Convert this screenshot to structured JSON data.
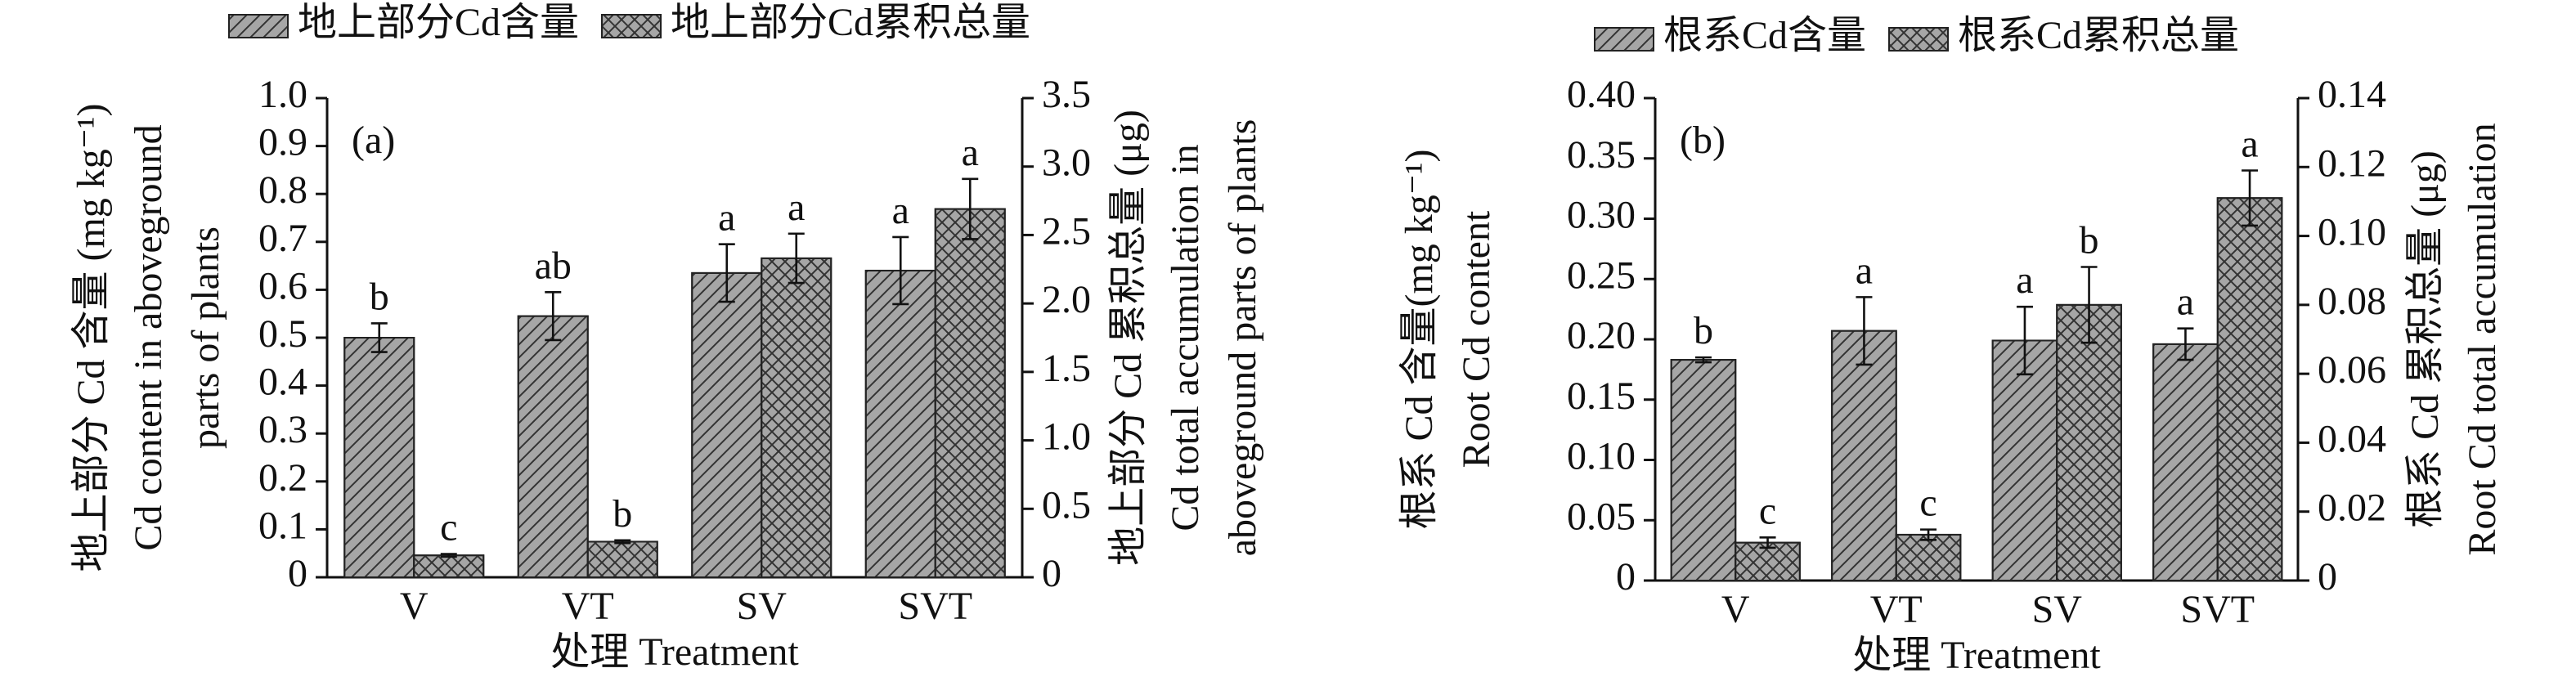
{
  "chart_data": [
    {
      "type": "bar",
      "panel": "(a)",
      "categories": [
        "V",
        "VT",
        "SV",
        "SVT"
      ],
      "xlabel": "处理 Treatment",
      "ylabel": [
        "地上部分 Cd 含量 (mg kg⁻¹)",
        "Cd content in aboveground",
        "parts of plants"
      ],
      "y2label": [
        "地上部分 Cd 累积总量 (μg)",
        "Cd total accumulation in",
        "aboveground parts of plants"
      ],
      "ylim": [
        0,
        1
      ],
      "yticks": [
        0,
        0.1,
        0.2,
        0.3,
        0.4,
        0.5,
        0.6,
        0.7,
        0.8,
        0.9,
        {
          "value": 1,
          "label": "1.0"
        }
      ],
      "y2lim": [
        0,
        3.5
      ],
      "y2ticks": [
        0,
        0.5,
        {
          "value": 1,
          "label": "1.0"
        },
        1.5,
        {
          "value": 2,
          "label": "2.0"
        },
        2.5,
        {
          "value": 3,
          "label": "3.0"
        },
        3.5
      ],
      "series": [
        {
          "name": "地上部分Cd含量",
          "color": "#a6a6a6",
          "hatch": "diagonal",
          "axis": "y",
          "values": [
            0.5,
            0.545,
            0.635,
            0.64
          ],
          "errors": [
            0.03,
            0.05,
            0.06,
            0.07
          ],
          "significance": [
            "b",
            "ab",
            "a",
            "a"
          ]
        },
        {
          "name": "地上部分Cd累积总量",
          "color": "#a6a6a6",
          "hatch": "crosshatch",
          "axis": "y2",
          "values": [
            0.16,
            0.26,
            2.33,
            2.69
          ],
          "errors": [
            0.01,
            0.01,
            0.18,
            0.22
          ],
          "significance": [
            "c",
            "b",
            "a",
            "a"
          ]
        }
      ]
    },
    {
      "type": "bar",
      "panel": "(b)",
      "categories": [
        "V",
        "VT",
        "SV",
        "SVT"
      ],
      "xlabel": "处理 Treatment",
      "ylabel": [
        "根系 Cd 含量(mg kg⁻¹)",
        "Root Cd content"
      ],
      "y2label": [
        "根系 Cd 累积总量 (μg)",
        "Root Cd total accumulation"
      ],
      "ylim": [
        0,
        0.4
      ],
      "yticks": [
        0,
        0.05,
        {
          "value": 0.1,
          "label": "0.10"
        },
        0.15,
        {
          "value": 0.2,
          "label": "0.20"
        },
        0.25,
        {
          "value": 0.3,
          "label": "0.30"
        },
        0.35,
        {
          "value": 0.4,
          "label": "0.40"
        }
      ],
      "y2lim": [
        0,
        0.14
      ],
      "y2ticks": [
        0,
        0.02,
        0.04,
        0.06,
        0.08,
        {
          "value": 0.1,
          "label": "0.10"
        },
        0.12,
        0.14
      ],
      "series": [
        {
          "name": "根系Cd含量",
          "color": "#a6a6a6",
          "hatch": "diagonal",
          "axis": "y",
          "values": [
            0.183,
            0.207,
            0.199,
            0.196
          ],
          "errors": [
            0.002,
            0.028,
            0.028,
            0.013
          ],
          "significance": [
            "b",
            "a",
            "a",
            "a"
          ]
        },
        {
          "name": "根系Cd累积总量",
          "color": "#a6a6a6",
          "hatch": "crosshatch",
          "axis": "y2",
          "values": [
            0.011,
            0.0133,
            0.08,
            0.111
          ],
          "errors": [
            0.0015,
            0.0015,
            0.011,
            0.008
          ],
          "significance": [
            "c",
            "c",
            "b",
            "a"
          ]
        }
      ]
    }
  ]
}
